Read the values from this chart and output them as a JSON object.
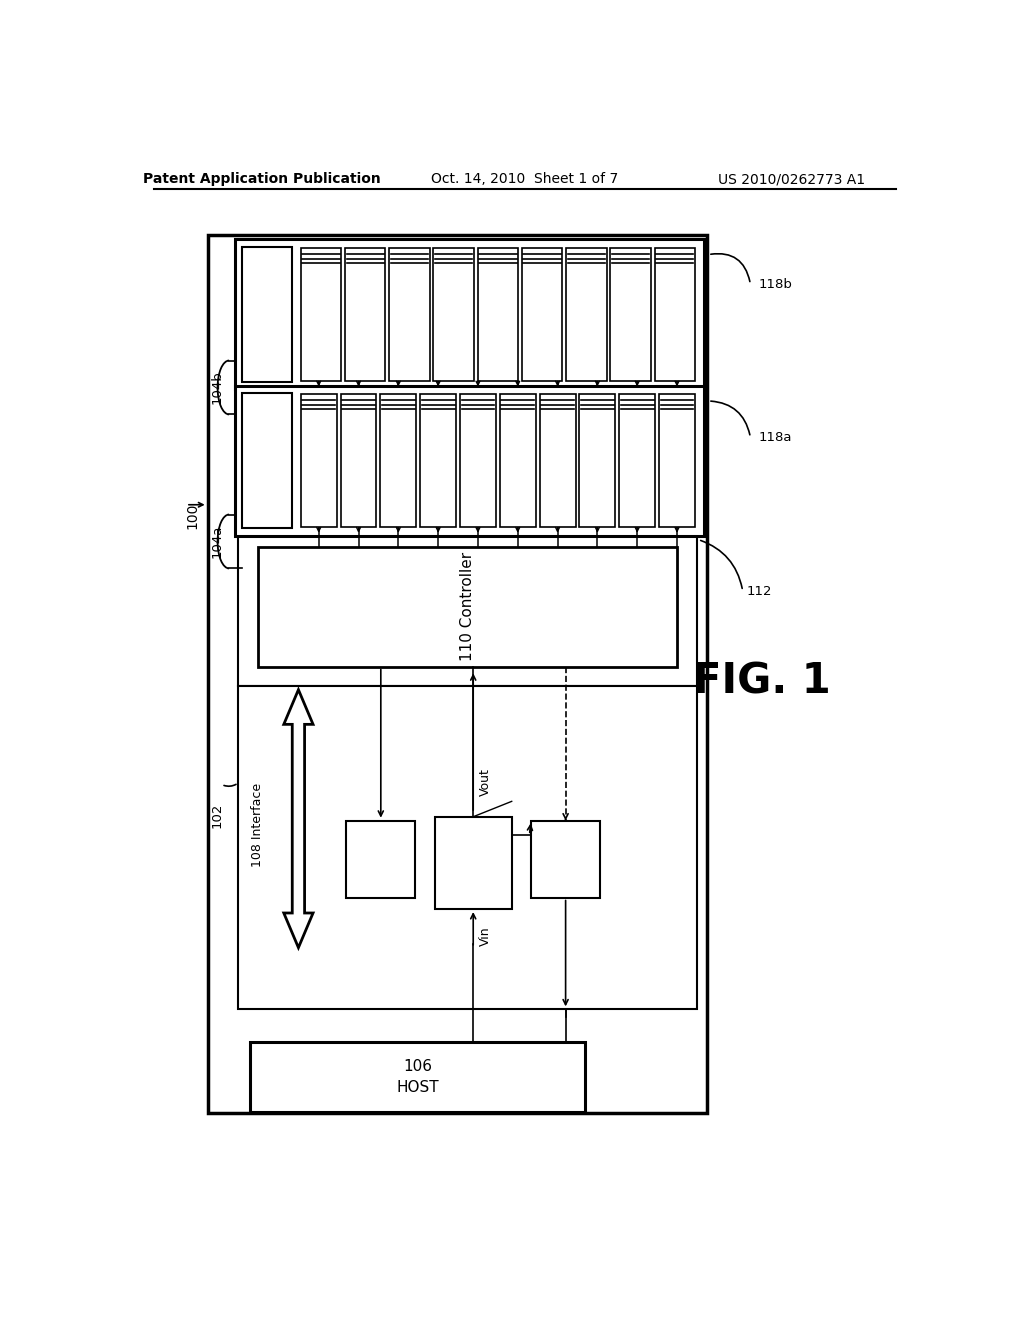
{
  "bg_color": "#ffffff",
  "header_left": "Patent Application Publication",
  "header_center": "Oct. 14, 2010  Sheet 1 of 7",
  "header_right": "US 2010/0262773 A1",
  "fig_label": "FIG. 1"
}
